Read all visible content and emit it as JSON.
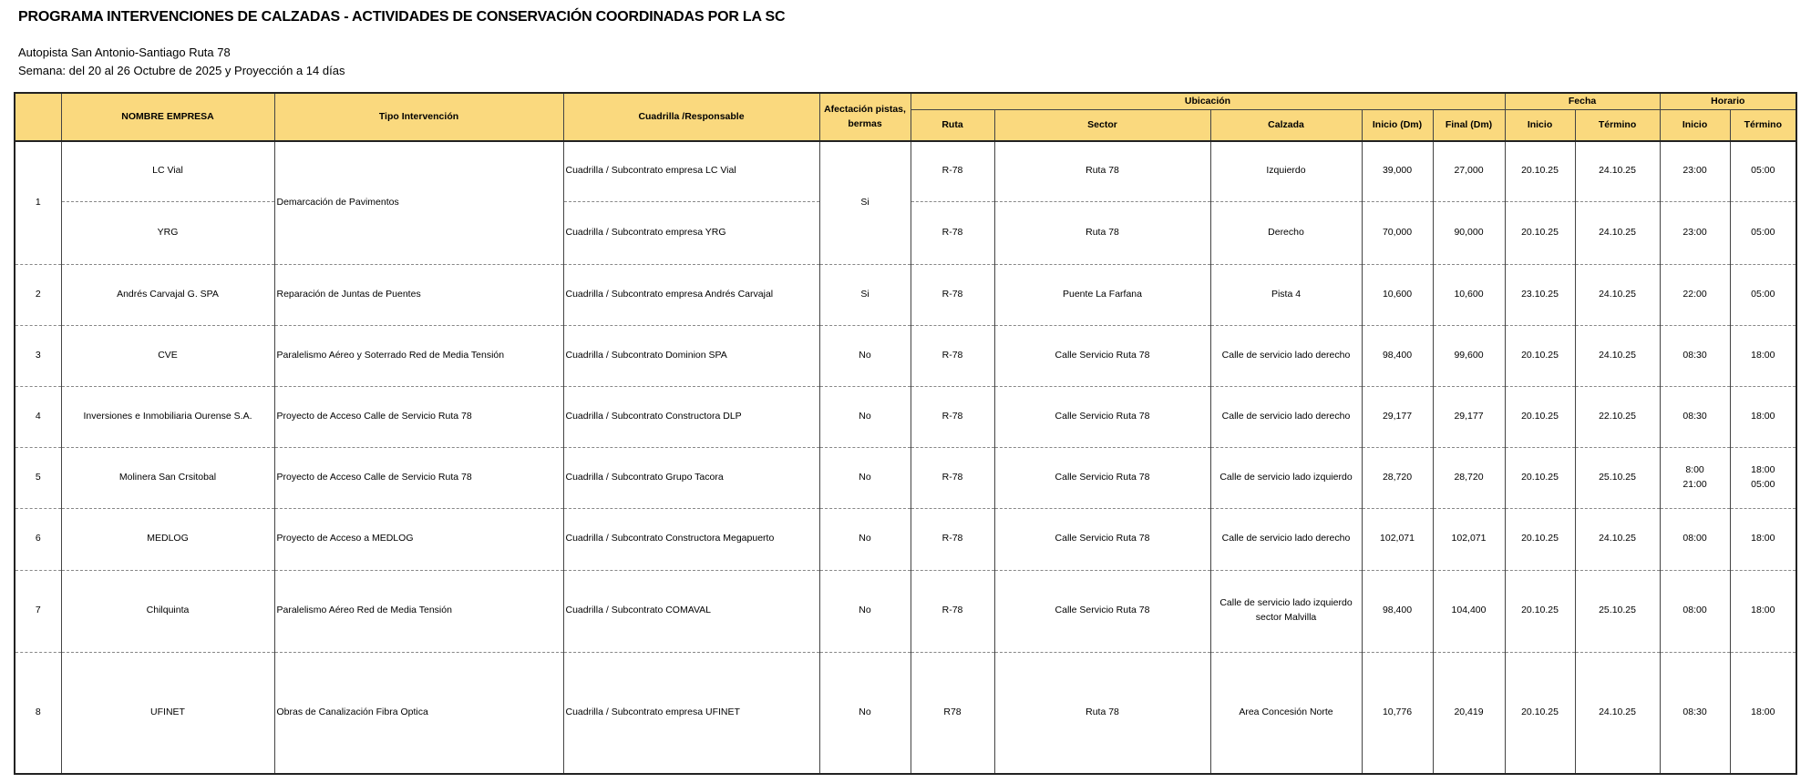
{
  "title": "PROGRAMA INTERVENCIONES DE CALZADAS - ACTIVIDADES DE CONSERVACIÓN COORDINADAS POR LA SC",
  "subtitle": "Autopista San Antonio-Santiago Ruta 78",
  "week": "Semana: del 20 al 26 Octubre de 2025 y Proyección a 14 días",
  "colors": {
    "header_bg": "#fad97e"
  },
  "headers": {
    "empresa": "NOMBRE EMPRESA",
    "tipo": "Tipo Intervención",
    "cuadrilla": "Cuadrilla /Responsable",
    "afectacion": "Afectación pistas, bermas",
    "ubicacion": "Ubicación",
    "ruta": "Ruta",
    "sector": "Sector",
    "calzada": "Calzada",
    "inicio_dm": "Inicio (Dm)",
    "final_dm": "Final (Dm)",
    "fecha": "Fecha",
    "fecha_inicio": "Inicio",
    "fecha_termino": "Término",
    "horario": "Horario",
    "hora_inicio": "Inicio",
    "hora_termino": "Término"
  },
  "rows": [
    {
      "n": "1",
      "empresa": "LC Vial",
      "tipo": "Demarcación de Pavimentos",
      "cuadrilla": "Cuadrilla / Subcontrato empresa LC Vial",
      "afectacion": "Si",
      "ruta": "R-78",
      "sector": "Ruta 78",
      "calzada": "Izquierdo",
      "inicio_dm": "39,000",
      "final_dm": "27,000",
      "f_inicio": "20.10.25",
      "f_termino": "24.10.25",
      "h_inicio": "23:00",
      "h_termino": "05:00"
    },
    {
      "n": "",
      "empresa": "YRG",
      "tipo": "",
      "cuadrilla": "Cuadrilla / Subcontrato empresa YRG",
      "afectacion": "",
      "ruta": "R-78",
      "sector": "Ruta 78",
      "calzada": "Derecho",
      "inicio_dm": "70,000",
      "final_dm": "90,000",
      "f_inicio": "20.10.25",
      "f_termino": "24.10.25",
      "h_inicio": "23:00",
      "h_termino": "05:00"
    },
    {
      "n": "2",
      "empresa": "Andrés Carvajal G. SPA",
      "tipo": "Reparación de Juntas de Puentes",
      "cuadrilla": "Cuadrilla / Subcontrato empresa Andrés Carvajal",
      "afectacion": "Si",
      "ruta": "R-78",
      "sector": "Puente La Farfana",
      "calzada": "Pista 4",
      "inicio_dm": "10,600",
      "final_dm": "10,600",
      "f_inicio": "23.10.25",
      "f_termino": "24.10.25",
      "h_inicio": "22:00",
      "h_termino": "05:00"
    },
    {
      "n": "3",
      "empresa": "CVE",
      "tipo": "Paralelismo Aéreo y Soterrado Red de Media Tensión",
      "cuadrilla": "Cuadrilla / Subcontrato Dominion SPA",
      "afectacion": "No",
      "ruta": "R-78",
      "sector": "Calle Servicio Ruta 78",
      "calzada": "Calle de servicio lado derecho",
      "inicio_dm": "98,400",
      "final_dm": "99,600",
      "f_inicio": "20.10.25",
      "f_termino": "24.10.25",
      "h_inicio": "08:30",
      "h_termino": "18:00"
    },
    {
      "n": "4",
      "empresa": "Inversiones e Inmobiliaria Ourense S.A.",
      "tipo": "Proyecto de Acceso Calle de Servicio Ruta 78",
      "cuadrilla": "Cuadrilla / Subcontrato Constructora DLP",
      "afectacion": "No",
      "ruta": "R-78",
      "sector": "Calle Servicio Ruta 78",
      "calzada": "Calle de servicio lado derecho",
      "inicio_dm": "29,177",
      "final_dm": "29,177",
      "f_inicio": "20.10.25",
      "f_termino": "22.10.25",
      "h_inicio": "08:30",
      "h_termino": "18:00"
    },
    {
      "n": "5",
      "empresa": "Molinera San Crsitobal",
      "tipo": "Proyecto de Acceso Calle de Servicio Ruta 78",
      "cuadrilla": "Cuadrilla / Subcontrato Grupo Tacora",
      "afectacion": "No",
      "ruta": "R-78",
      "sector": "Calle Servicio Ruta 78",
      "calzada": "Calle de servicio lado izquierdo",
      "inicio_dm": "28,720",
      "final_dm": "28,720",
      "f_inicio": "20.10.25",
      "f_termino": "25.10.25",
      "h_inicio": "8:00\n21:00",
      "h_termino": "18:00\n05:00"
    },
    {
      "n": "6",
      "empresa": "MEDLOG",
      "tipo": "Proyecto de Acceso a MEDLOG",
      "cuadrilla": "Cuadrilla / Subcontrato Constructora Megapuerto",
      "afectacion": "No",
      "ruta": "R-78",
      "sector": "Calle Servicio Ruta 78",
      "calzada": "Calle de servicio lado derecho",
      "inicio_dm": "102,071",
      "final_dm": "102,071",
      "f_inicio": "20.10.25",
      "f_termino": "24.10.25",
      "h_inicio": "08:00",
      "h_termino": "18:00"
    },
    {
      "n": "7",
      "empresa": "Chilquinta",
      "tipo": "Paralelismo Aéreo Red de Media Tensión",
      "cuadrilla": "Cuadrilla / Subcontrato COMAVAL",
      "afectacion": "No",
      "ruta": "R-78",
      "sector": "Calle Servicio Ruta 78",
      "calzada": "Calle de servicio lado izquierdo sector Malvilla",
      "inicio_dm": "98,400",
      "final_dm": "104,400",
      "f_inicio": "20.10.25",
      "f_termino": "25.10.25",
      "h_inicio": "08:00",
      "h_termino": "18:00"
    },
    {
      "n": "8",
      "empresa": "UFINET",
      "tipo": "Obras de Canalización Fibra Optica",
      "cuadrilla": "Cuadrilla / Subcontrato empresa UFINET",
      "afectacion": "No",
      "ruta": "R78",
      "sector": "Ruta 78",
      "calzada": "Area Concesión Norte",
      "inicio_dm": "10,776",
      "final_dm": "20,419",
      "f_inicio": "20.10.25",
      "f_termino": "24.10.25",
      "h_inicio": "08:30",
      "h_termino": "18:00"
    }
  ]
}
